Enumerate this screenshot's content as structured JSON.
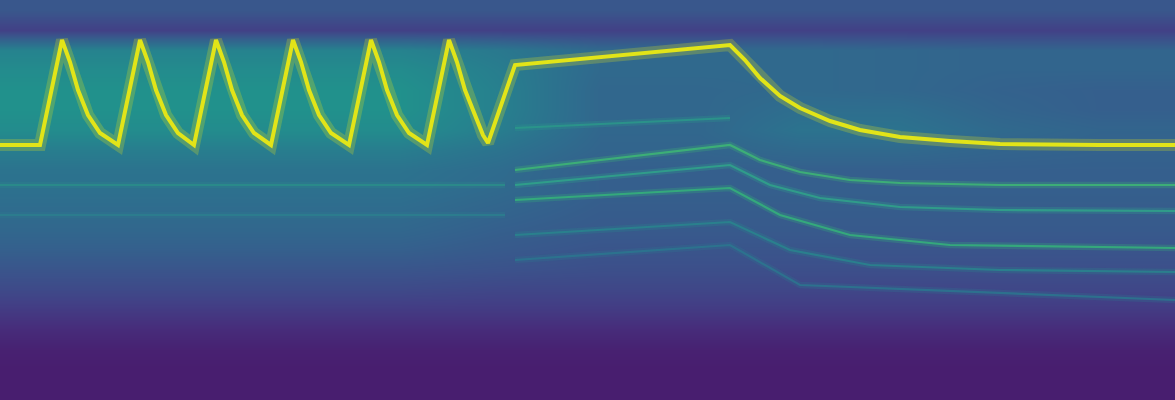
{
  "chart_data": {
    "type": "heatmap",
    "color": "viridis",
    "tick_labels": false,
    "xlim": [
      0,
      1175
    ],
    "ylim": [
      400,
      0
    ],
    "zlim": [
      0,
      1
    ],
    "x": [
      0,
      100,
      200,
      300,
      400,
      500,
      600,
      700,
      800,
      900,
      1000,
      1100,
      1200
    ],
    "y": [
      10,
      30,
      50,
      70,
      90,
      110,
      130,
      150,
      170,
      190,
      210,
      230,
      250,
      270,
      290,
      310,
      330,
      350,
      370,
      390
    ],
    "z": [
      [
        0.27,
        0.27,
        0.27,
        0.27,
        0.27,
        0.27,
        0.27,
        0.27,
        0.27,
        0.27,
        0.27,
        0.27,
        0.27
      ],
      [
        0.19,
        0.19,
        0.19,
        0.19,
        0.19,
        0.19,
        0.19,
        0.19,
        0.19,
        0.19,
        0.19,
        0.19,
        0.19
      ],
      [
        0.44,
        0.44,
        0.44,
        0.44,
        0.44,
        0.4,
        0.34,
        0.34,
        0.34,
        0.33,
        0.32,
        0.32,
        0.32
      ],
      [
        0.48,
        0.48,
        0.48,
        0.48,
        0.48,
        0.42,
        0.34,
        0.34,
        0.34,
        0.33,
        0.32,
        0.32,
        0.32
      ],
      [
        0.5,
        0.5,
        0.5,
        0.5,
        0.5,
        0.43,
        0.33,
        0.33,
        0.34,
        0.33,
        0.31,
        0.3,
        0.3
      ],
      [
        0.5,
        0.5,
        0.5,
        0.5,
        0.5,
        0.43,
        0.33,
        0.33,
        0.36,
        0.36,
        0.32,
        0.3,
        0.3
      ],
      [
        0.48,
        0.48,
        0.48,
        0.48,
        0.48,
        0.42,
        0.33,
        0.33,
        0.38,
        0.38,
        0.34,
        0.32,
        0.32
      ],
      [
        0.42,
        0.42,
        0.42,
        0.42,
        0.42,
        0.38,
        0.32,
        0.32,
        0.34,
        0.34,
        0.32,
        0.31,
        0.31
      ],
      [
        0.38,
        0.38,
        0.38,
        0.38,
        0.38,
        0.35,
        0.3,
        0.3,
        0.3,
        0.3,
        0.3,
        0.3,
        0.3
      ],
      [
        0.37,
        0.37,
        0.37,
        0.37,
        0.37,
        0.34,
        0.3,
        0.3,
        0.3,
        0.3,
        0.3,
        0.3,
        0.3
      ],
      [
        0.35,
        0.35,
        0.35,
        0.35,
        0.35,
        0.32,
        0.29,
        0.29,
        0.29,
        0.29,
        0.29,
        0.29,
        0.29
      ],
      [
        0.33,
        0.33,
        0.33,
        0.33,
        0.33,
        0.3,
        0.28,
        0.28,
        0.28,
        0.28,
        0.28,
        0.28,
        0.28
      ],
      [
        0.3,
        0.3,
        0.3,
        0.3,
        0.3,
        0.28,
        0.26,
        0.26,
        0.26,
        0.26,
        0.26,
        0.26,
        0.26
      ],
      [
        0.26,
        0.26,
        0.26,
        0.26,
        0.26,
        0.25,
        0.24,
        0.24,
        0.24,
        0.24,
        0.24,
        0.24,
        0.24
      ],
      [
        0.22,
        0.22,
        0.22,
        0.22,
        0.22,
        0.21,
        0.21,
        0.21,
        0.21,
        0.21,
        0.21,
        0.21,
        0.21
      ],
      [
        0.17,
        0.17,
        0.17,
        0.17,
        0.17,
        0.17,
        0.17,
        0.17,
        0.17,
        0.17,
        0.17,
        0.17,
        0.17
      ],
      [
        0.12,
        0.12,
        0.12,
        0.12,
        0.12,
        0.12,
        0.12,
        0.12,
        0.12,
        0.12,
        0.12,
        0.12,
        0.12
      ],
      [
        0.09,
        0.09,
        0.09,
        0.09,
        0.09,
        0.09,
        0.09,
        0.09,
        0.09,
        0.09,
        0.09,
        0.09,
        0.09
      ],
      [
        0.08,
        0.08,
        0.08,
        0.08,
        0.08,
        0.08,
        0.08,
        0.08,
        0.08,
        0.08,
        0.08,
        0.08,
        0.08
      ],
      [
        0.08,
        0.08,
        0.08,
        0.08,
        0.08,
        0.08,
        0.08,
        0.08,
        0.08,
        0.08,
        0.08,
        0.08,
        0.08
      ]
    ],
    "series": [
      {
        "type": "line",
        "color": "#e2e418",
        "x": [
          0,
          40,
          62,
          70,
          78,
          88,
          100,
          114,
          118,
          140,
          148,
          156,
          166,
          178,
          192,
          194,
          216,
          224,
          232,
          242,
          254,
          268,
          271,
          293,
          301,
          309,
          319,
          331,
          345,
          349,
          371,
          379,
          387,
          397,
          409,
          423,
          427,
          449,
          457,
          465,
          475,
          483,
          488,
          515,
          730,
          745,
          760,
          780,
          800,
          830,
          860,
          900,
          950,
          1000,
          1100,
          1175
        ],
        "values": [
          145,
          145,
          40,
          62,
          90,
          115,
          133,
          143,
          145,
          40,
          62,
          90,
          115,
          133,
          143,
          145,
          40,
          62,
          90,
          115,
          133,
          143,
          145,
          40,
          62,
          90,
          115,
          133,
          143,
          145,
          40,
          62,
          90,
          115,
          133,
          143,
          145,
          40,
          62,
          90,
          115,
          135,
          143,
          65,
          45,
          60,
          78,
          96,
          108,
          121,
          130,
          137,
          141,
          144,
          145,
          145
        ]
      },
      {
        "type": "line",
        "color": "#3fbc73",
        "x": [
          515,
          730,
          760,
          800,
          850,
          900,
          1000,
          1175
        ],
        "values": [
          170,
          145,
          160,
          172,
          180,
          183,
          185,
          185
        ]
      },
      {
        "type": "line",
        "color": "#2fa88a",
        "x": [
          515,
          730,
          770,
          820,
          900,
          1000,
          1175
        ],
        "values": [
          185,
          165,
          185,
          198,
          207,
          210,
          211
        ]
      },
      {
        "type": "line",
        "color": "#35b779",
        "x": [
          515,
          730,
          780,
          850,
          950,
          1175
        ],
        "values": [
          200,
          188,
          215,
          235,
          245,
          248
        ]
      },
      {
        "type": "line",
        "color": "#2a9a8a",
        "x": [
          515,
          730
        ],
        "values": [
          128,
          118
        ]
      },
      {
        "type": "line",
        "color": "#28878d",
        "x": [
          515,
          730,
          790,
          870,
          1000,
          1175
        ],
        "values": [
          235,
          222,
          250,
          265,
          270,
          272
        ]
      },
      {
        "type": "line",
        "color": "#2a788e",
        "x": [
          515,
          730,
          800,
          1175
        ],
        "values": [
          260,
          245,
          285,
          300
        ]
      },
      {
        "type": "line",
        "color": "#2a8f8a",
        "x": [
          0,
          505
        ],
        "values": [
          185,
          185
        ]
      },
      {
        "type": "line",
        "color": "#2c7f8e",
        "x": [
          0,
          505
        ],
        "values": [
          215,
          215
        ]
      }
    ]
  }
}
